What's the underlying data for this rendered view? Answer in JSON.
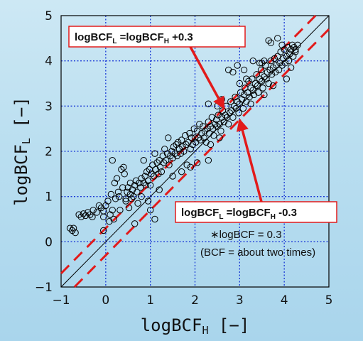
{
  "chart_data": {
    "type": "scatter",
    "xlabel": {
      "base": "logBCF",
      "sub": "H",
      "unit": "[−]"
    },
    "ylabel": {
      "base": "logBCF",
      "sub": "L",
      "unit": "[−]"
    },
    "xlim": [
      -1,
      5
    ],
    "ylim": [
      -1,
      5
    ],
    "xticks": [
      "−1",
      "0",
      "1",
      "2",
      "3",
      "4",
      "5"
    ],
    "yticks": [
      "−1",
      "0",
      "1",
      "2",
      "3",
      "4",
      "5"
    ],
    "grid": true,
    "reference_lines": [
      {
        "slope": 1,
        "intercept": 0,
        "style": "solid",
        "color": "#000000"
      },
      {
        "slope": 1,
        "intercept": 0.3,
        "style": "dashed",
        "color": "#e21b1b"
      },
      {
        "slope": 1,
        "intercept": -0.3,
        "style": "dashed",
        "color": "#e21b1b"
      }
    ],
    "annotations": [
      {
        "parts": [
          "logBCF",
          "L",
          " =logBCF",
          "H",
          " +0.3"
        ],
        "arrow_to": [
          2.65,
          2.95
        ]
      },
      {
        "parts": [
          "logBCF",
          "L",
          " =logBCF",
          "H",
          " -0.3"
        ],
        "arrow_to": [
          3.0,
          2.7
        ]
      }
    ],
    "note": [
      "∗logBCF = 0.3",
      "(BCF = about two times)"
    ],
    "colors": {
      "grid": "#1a39d6",
      "points": "#000000",
      "box_border": "#e21b1b",
      "arrow": "#e21b1b"
    },
    "points": [
      [
        -0.8,
        0.3
      ],
      [
        -0.75,
        0.25
      ],
      [
        -0.72,
        0.3
      ],
      [
        -0.68,
        0.2
      ],
      [
        -0.6,
        0.6
      ],
      [
        -0.55,
        0.55
      ],
      [
        -0.5,
        0.62
      ],
      [
        -0.45,
        0.58
      ],
      [
        -0.4,
        0.65
      ],
      [
        -0.35,
        0.6
      ],
      [
        -0.3,
        0.55
      ],
      [
        -0.28,
        0.7
      ],
      [
        -0.2,
        0.65
      ],
      [
        -0.15,
        0.8
      ],
      [
        -0.1,
        0.75
      ],
      [
        -0.05,
        0.68
      ],
      [
        -0.05,
        0.55
      ],
      [
        -0.05,
        0.25
      ],
      [
        0.0,
        0.8
      ],
      [
        0.05,
        0.9
      ],
      [
        0.08,
        0.45
      ],
      [
        0.1,
        0.6
      ],
      [
        0.12,
        1.05
      ],
      [
        0.15,
        0.7
      ],
      [
        0.15,
        1.8
      ],
      [
        0.18,
        0.5
      ],
      [
        0.2,
        1.3
      ],
      [
        0.22,
        0.95
      ],
      [
        0.25,
        1.4
      ],
      [
        0.28,
        1.1
      ],
      [
        0.3,
        1.0
      ],
      [
        0.32,
        0.7
      ],
      [
        0.35,
        1.6
      ],
      [
        0.38,
        1.2
      ],
      [
        0.4,
        1.65
      ],
      [
        0.42,
        1.5
      ],
      [
        0.45,
        0.9
      ],
      [
        0.45,
        0.95
      ],
      [
        0.48,
        1.1
      ],
      [
        0.5,
        1.2
      ],
      [
        0.52,
        0.75
      ],
      [
        0.55,
        1.3
      ],
      [
        0.55,
        1.05
      ],
      [
        0.58,
        0.95
      ],
      [
        0.6,
        1.15
      ],
      [
        0.62,
        1.0
      ],
      [
        0.65,
        1.25
      ],
      [
        0.65,
        0.4
      ],
      [
        0.68,
        1.35
      ],
      [
        0.7,
        1.1
      ],
      [
        0.72,
        0.85
      ],
      [
        0.75,
        1.3
      ],
      [
        0.78,
        1.2
      ],
      [
        0.8,
        1.4
      ],
      [
        0.8,
        1.0
      ],
      [
        0.85,
        1.3
      ],
      [
        0.85,
        1.8
      ],
      [
        0.88,
        1.45
      ],
      [
        0.9,
        1.25
      ],
      [
        0.92,
        1.55
      ],
      [
        0.95,
        1.35
      ],
      [
        0.98,
        1.6
      ],
      [
        1.0,
        1.25
      ],
      [
        1.02,
        1.5
      ],
      [
        1.05,
        1.7
      ],
      [
        1.08,
        1.45
      ],
      [
        1.1,
        0.5
      ],
      [
        1.1,
        1.95
      ],
      [
        1.12,
        1.6
      ],
      [
        1.15,
        1.75
      ],
      [
        1.18,
        1.5
      ],
      [
        1.2,
        1.8
      ],
      [
        1.22,
        1.65
      ],
      [
        1.25,
        1.55
      ],
      [
        1.28,
        1.9
      ],
      [
        1.3,
        1.75
      ],
      [
        1.32,
        2.05
      ],
      [
        1.35,
        1.8
      ],
      [
        1.38,
        1.95
      ],
      [
        1.4,
        2.3
      ],
      [
        1.42,
        1.7
      ],
      [
        1.45,
        1.9
      ],
      [
        1.48,
        2.0
      ],
      [
        1.5,
        1.85
      ],
      [
        1.52,
        2.1
      ],
      [
        1.55,
        1.95
      ],
      [
        1.58,
        2.15
      ],
      [
        1.6,
        1.9
      ],
      [
        1.62,
        2.2
      ],
      [
        1.65,
        2.05
      ],
      [
        1.68,
        1.95
      ],
      [
        1.7,
        2.25
      ],
      [
        1.72,
        2.1
      ],
      [
        1.75,
        2.0
      ],
      [
        1.78,
        2.35
      ],
      [
        1.8,
        2.15
      ],
      [
        1.82,
        1.7
      ],
      [
        1.85,
        2.2
      ],
      [
        1.88,
        2.4
      ],
      [
        1.9,
        2.05
      ],
      [
        1.92,
        2.3
      ],
      [
        1.95,
        2.15
      ],
      [
        1.98,
        2.5
      ],
      [
        2.0,
        2.3
      ],
      [
        2.02,
        2.2
      ],
      [
        2.05,
        2.45
      ],
      [
        2.08,
        2.3
      ],
      [
        2.1,
        2.6
      ],
      [
        2.12,
        2.25
      ],
      [
        2.15,
        2.4
      ],
      [
        2.18,
        2.55
      ],
      [
        2.2,
        2.3
      ],
      [
        2.22,
        2.45
      ],
      [
        2.25,
        2.2
      ],
      [
        2.28,
        2.5
      ],
      [
        2.3,
        2.65
      ],
      [
        2.32,
        2.4
      ],
      [
        2.35,
        2.55
      ],
      [
        2.38,
        2.75
      ],
      [
        2.4,
        2.5
      ],
      [
        2.42,
        2.35
      ],
      [
        2.45,
        2.6
      ],
      [
        2.48,
        2.7
      ],
      [
        2.5,
        2.55
      ],
      [
        2.52,
        2.8
      ],
      [
        2.55,
        2.6
      ],
      [
        2.58,
        2.45
      ],
      [
        2.6,
        2.75
      ],
      [
        2.62,
        2.9
      ],
      [
        2.65,
        2.65
      ],
      [
        2.68,
        2.8
      ],
      [
        2.7,
        3.0
      ],
      [
        2.72,
        2.75
      ],
      [
        2.75,
        2.6
      ],
      [
        2.78,
        2.85
      ],
      [
        2.8,
        3.1
      ],
      [
        2.82,
        2.9
      ],
      [
        2.85,
        2.75
      ],
      [
        2.88,
        3.0
      ],
      [
        2.9,
        3.2
      ],
      [
        2.92,
        2.95
      ],
      [
        2.95,
        3.1
      ],
      [
        2.98,
        2.85
      ],
      [
        3.0,
        3.05
      ],
      [
        3.02,
        3.3
      ],
      [
        3.05,
        3.15
      ],
      [
        3.08,
        2.95
      ],
      [
        3.1,
        3.25
      ],
      [
        3.12,
        3.4
      ],
      [
        3.15,
        3.1
      ],
      [
        3.18,
        3.3
      ],
      [
        3.2,
        3.55
      ],
      [
        3.22,
        3.2
      ],
      [
        3.25,
        3.4
      ],
      [
        3.28,
        3.6
      ],
      [
        3.3,
        3.35
      ],
      [
        3.32,
        3.25
      ],
      [
        3.35,
        3.5
      ],
      [
        3.38,
        3.7
      ],
      [
        3.4,
        3.45
      ],
      [
        3.42,
        3.3
      ],
      [
        3.45,
        3.6
      ],
      [
        3.48,
        3.8
      ],
      [
        3.5,
        3.55
      ],
      [
        3.52,
        3.4
      ],
      [
        3.55,
        3.65
      ],
      [
        3.58,
        3.9
      ],
      [
        3.6,
        3.6
      ],
      [
        3.62,
        3.75
      ],
      [
        3.65,
        3.5
      ],
      [
        3.68,
        3.8
      ],
      [
        3.7,
        4.0
      ],
      [
        3.72,
        3.7
      ],
      [
        3.75,
        3.85
      ],
      [
        3.78,
        4.05
      ],
      [
        3.8,
        3.75
      ],
      [
        3.82,
        3.9
      ],
      [
        3.85,
        4.1
      ],
      [
        3.88,
        3.8
      ],
      [
        3.9,
        3.95
      ],
      [
        3.92,
        4.2
      ],
      [
        3.95,
        3.9
      ],
      [
        3.98,
        4.05
      ],
      [
        4.0,
        4.25
      ],
      [
        4.02,
        3.95
      ],
      [
        4.05,
        4.1
      ],
      [
        4.08,
        4.3
      ],
      [
        4.1,
        4.0
      ],
      [
        4.12,
        4.15
      ],
      [
        4.15,
        4.25
      ],
      [
        4.18,
        4.35
      ],
      [
        4.2,
        4.1
      ],
      [
        4.22,
        4.3
      ],
      [
        4.25,
        4.2
      ],
      [
        4.3,
        4.35
      ],
      [
        3.5,
        3.95
      ],
      [
        3.55,
        4.0
      ],
      [
        3.7,
        4.4
      ],
      [
        3.3,
        4.0
      ],
      [
        3.1,
        3.8
      ],
      [
        2.95,
        3.9
      ],
      [
        2.75,
        3.8
      ],
      [
        2.85,
        3.75
      ],
      [
        3.25,
        3.05
      ],
      [
        2.55,
        2.3
      ],
      [
        2.35,
        2.15
      ],
      [
        2.3,
        1.8
      ],
      [
        2.05,
        1.75
      ],
      [
        1.9,
        1.65
      ],
      [
        1.7,
        1.55
      ],
      [
        1.5,
        1.45
      ],
      [
        1.2,
        1.15
      ],
      [
        1.0,
        0.7
      ],
      [
        0.95,
        0.9
      ],
      [
        2.3,
        3.05
      ],
      [
        2.5,
        3.0
      ],
      [
        2.6,
        3.15
      ],
      [
        3.0,
        3.5
      ],
      [
        3.15,
        3.6
      ],
      [
        3.45,
        3.95
      ],
      [
        3.55,
        3.25
      ],
      [
        3.75,
        3.45
      ],
      [
        4.05,
        3.6
      ],
      [
        4.15,
        3.85
      ],
      [
        3.95,
        4.35
      ],
      [
        4.25,
        4.25
      ],
      [
        3.65,
        4.45
      ],
      [
        3.85,
        4.5
      ]
    ]
  }
}
